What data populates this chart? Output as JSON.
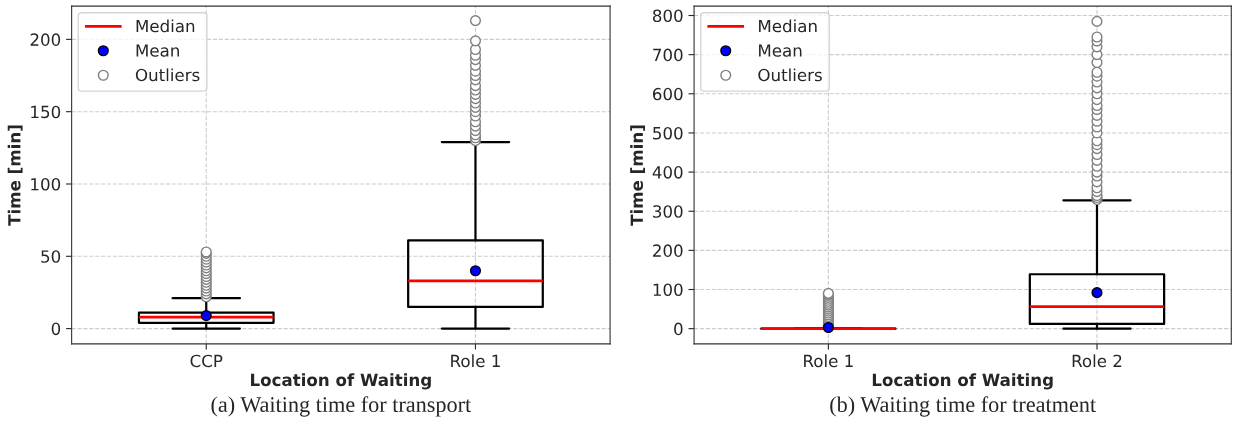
{
  "chart_data": [
    {
      "type": "box",
      "title": "(a) Waiting time for transport",
      "xlabel": "Location of Waiting",
      "ylabel": "Time [min]",
      "categories": [
        "CCP",
        "Role 1"
      ],
      "boxes": [
        {
          "low": 0,
          "q1": 4,
          "median": 8,
          "q3": 11,
          "high": 21,
          "mean": 9,
          "outliers": [
            22,
            24,
            26,
            28,
            30,
            32,
            34,
            36,
            38,
            40,
            42,
            44,
            46,
            48,
            50,
            52,
            53
          ]
        },
        {
          "low": 0,
          "q1": 15,
          "median": 33,
          "q3": 61,
          "high": 129,
          "mean": 40,
          "outliers": [
            130,
            132,
            134,
            137,
            140,
            143,
            147,
            150,
            153,
            156,
            159,
            162,
            165,
            168,
            172,
            175,
            178,
            182,
            186,
            189,
            193,
            199,
            213
          ]
        }
      ],
      "series": [
        {
          "name": "Median",
          "color": "#ff0000",
          "values": [
            null,
            null
          ]
        },
        {
          "name": "Mean",
          "color": "#0000ff",
          "values": [
            null,
            null
          ]
        },
        {
          "name": "Outliers",
          "color": "#ffffff",
          "values": [
            null,
            null
          ]
        }
      ],
      "ylim": [
        -10.6,
        223
      ],
      "yticks": [
        0,
        50,
        100,
        150,
        200
      ],
      "grid": true,
      "legend": "top left"
    },
    {
      "type": "box",
      "title": "(b) Waiting time for treatment",
      "xlabel": "Location of Waiting",
      "ylabel": "Time [min]",
      "categories": [
        "Role 1",
        "Role 2"
      ],
      "boxes": [
        {
          "low": 0,
          "q1": 0,
          "median": 0,
          "q3": 0,
          "high": 0,
          "mean": 3,
          "outliers": [
            5,
            10,
            15,
            20,
            25,
            30,
            35,
            40,
            45,
            50,
            55,
            60,
            65,
            70,
            75,
            80,
            85,
            88,
            90
          ]
        },
        {
          "low": 0,
          "q1": 12,
          "median": 56,
          "q3": 139,
          "high": 328,
          "mean": 92,
          "outliers": [
            330,
            335,
            340,
            350,
            360,
            375,
            390,
            400,
            415,
            430,
            445,
            460,
            470,
            480,
            500,
            515,
            530,
            545,
            560,
            570,
            585,
            600,
            615,
            630,
            645,
            655,
            680,
            700,
            720,
            735,
            745,
            785
          ]
        }
      ],
      "series": [
        {
          "name": "Median",
          "color": "#ff0000",
          "values": [
            null,
            null
          ]
        },
        {
          "name": "Mean",
          "color": "#0000ff",
          "values": [
            null,
            null
          ]
        },
        {
          "name": "Outliers",
          "color": "#ffffff",
          "values": [
            null,
            null
          ]
        }
      ],
      "ylim": [
        -39,
        824
      ],
      "yticks": [
        0,
        100,
        200,
        300,
        400,
        500,
        600,
        700,
        800
      ],
      "grid": true,
      "legend": "top left"
    }
  ]
}
